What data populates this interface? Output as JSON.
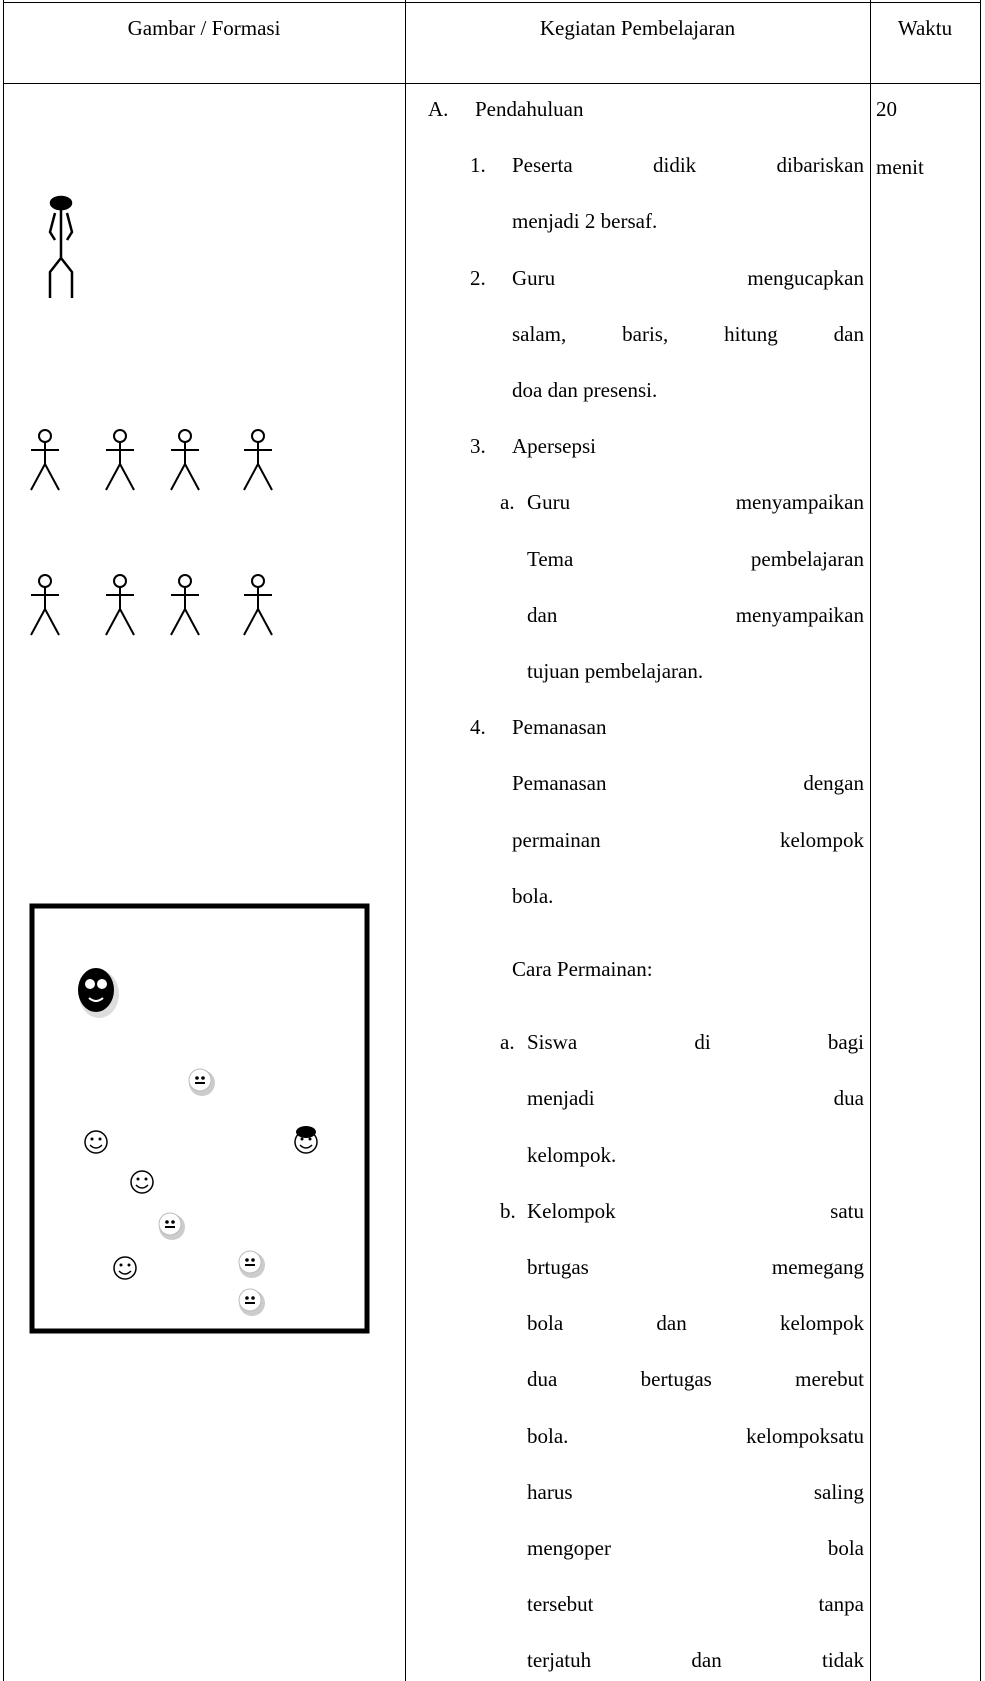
{
  "table": {
    "header": [
      "Gambar / Formasi",
      "Kegiatan Pembelajaran",
      "Waktu"
    ],
    "activity": {
      "section": {
        "marker": "A.",
        "title": "Pendahuluan"
      },
      "items": [
        {
          "marker": "1.",
          "lines": [
            "Peserta didik dibariskan",
            "menjadi 2 bersaf."
          ]
        },
        {
          "marker": "2.",
          "lines": [
            "Guru mengucapkan",
            "salam, baris, hitung dan",
            "doa dan presensi."
          ]
        },
        {
          "marker": "3.",
          "title": "Apersepsi",
          "subitems": [
            {
              "marker": "a.",
              "lines": [
                "Guru menyampaikan",
                "Tema pembelajaran",
                "dan menyampaikan",
                "tujuan pembelajaran."
              ]
            }
          ]
        },
        {
          "marker": "4.",
          "title": "Pemanasan",
          "lines": [
            "Pemanasan dengan",
            "permainan kelompok",
            "bola."
          ],
          "rules_title": "Cara Permainan:",
          "subitems": [
            {
              "marker": "a.",
              "lines": [
                "Siswa di bagi",
                "menjadi dua",
                "kelompok."
              ]
            },
            {
              "marker": "b.",
              "lines": [
                "Kelompok satu",
                "brtugas memegang",
                "bola dan kelompok",
                "dua bertugas merebut",
                "bola. kelompoksatu",
                "harus saling",
                "mengoper bola",
                "tersebut tanpa",
                "terjatuh dan tidak"
              ]
            }
          ]
        }
      ]
    },
    "time": [
      "20",
      "menit"
    ]
  }
}
